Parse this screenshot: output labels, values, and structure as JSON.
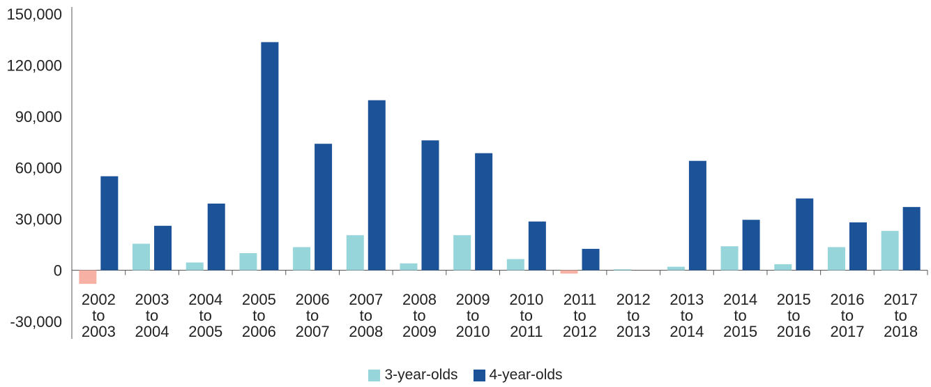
{
  "chart_data": {
    "type": "bar",
    "categories": [
      [
        "2002",
        "to",
        "2003"
      ],
      [
        "2003",
        "to",
        "2004"
      ],
      [
        "2004",
        "to",
        "2005"
      ],
      [
        "2005",
        "to",
        "2006"
      ],
      [
        "2006",
        "to",
        "2007"
      ],
      [
        "2007",
        "to",
        "2008"
      ],
      [
        "2008",
        "to",
        "2009"
      ],
      [
        "2009",
        "to",
        "2010"
      ],
      [
        "2010",
        "to",
        "2011"
      ],
      [
        "2011",
        "to",
        "2012"
      ],
      [
        "2012",
        "to",
        "2013"
      ],
      [
        "2013",
        "to",
        "2014"
      ],
      [
        "2014",
        "to",
        "2015"
      ],
      [
        "2015",
        "to",
        "2016"
      ],
      [
        "2016",
        "to",
        "2017"
      ],
      [
        "2017",
        "to",
        "2018"
      ]
    ],
    "series": [
      {
        "name": "3-year-olds",
        "color": "#96d5da",
        "values": [
          -8000,
          15500,
          4500,
          10000,
          13500,
          20500,
          4000,
          20500,
          6500,
          -2000,
          500,
          2000,
          14000,
          3500,
          13500,
          23000
        ]
      },
      {
        "name": "4-year-olds",
        "color": "#1b5298",
        "values": [
          55000,
          26000,
          39000,
          133500,
          74000,
          99500,
          76000,
          68500,
          28500,
          12500,
          0,
          64000,
          29500,
          42000,
          28000,
          37000
        ]
      }
    ],
    "negative_color": "#f7b1a4",
    "y_ticks": [
      "150,000",
      "120,000",
      "90,000",
      "60,000",
      "30,000",
      "0",
      "-30,000"
    ],
    "y_tick_values": [
      150000,
      120000,
      90000,
      60000,
      30000,
      0,
      -30000
    ],
    "ylim": [
      -30000,
      150000
    ],
    "grid": false,
    "legend_position": "bottom-center"
  }
}
